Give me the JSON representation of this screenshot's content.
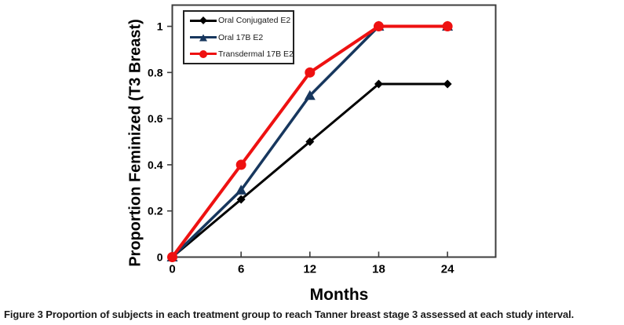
{
  "figure": {
    "caption_label": "Figure 3",
    "caption_text": "Proportion of subjects in each treatment group to reach Tanner breast stage 3 assessed at each study interval."
  },
  "chart_data": {
    "type": "line",
    "title": "",
    "xlabel": "Months",
    "ylabel": "Proportion Feminized (T3 Breast)",
    "x": [
      0,
      6,
      12,
      18,
      24
    ],
    "series": [
      {
        "name": "Oral Conjugated E2",
        "marker": "diamond",
        "color": "#000000",
        "values": [
          0,
          0.25,
          0.5,
          0.75,
          0.75
        ]
      },
      {
        "name": "Oral 17B E2",
        "marker": "triangle",
        "color": "#17375E",
        "values": [
          0,
          0.29,
          0.7,
          1,
          1
        ]
      },
      {
        "name": "Transdermal 17B E2",
        "marker": "circle",
        "color": "#EE1111",
        "values": [
          0,
          0.4,
          0.8,
          1,
          1
        ]
      }
    ],
    "x_ticks": [
      "0",
      "6",
      "12",
      "18",
      "24"
    ],
    "y_ticks": [
      "0",
      "0.2",
      "0.4",
      "0.6",
      "0.8",
      "1"
    ],
    "xlim": [
      0,
      28.2
    ],
    "ylim": [
      0,
      1.092
    ],
    "grid": false,
    "legend_position": "top-left-inside",
    "frame_color": "#3d3d3d",
    "tick_label_color": "#000000"
  }
}
